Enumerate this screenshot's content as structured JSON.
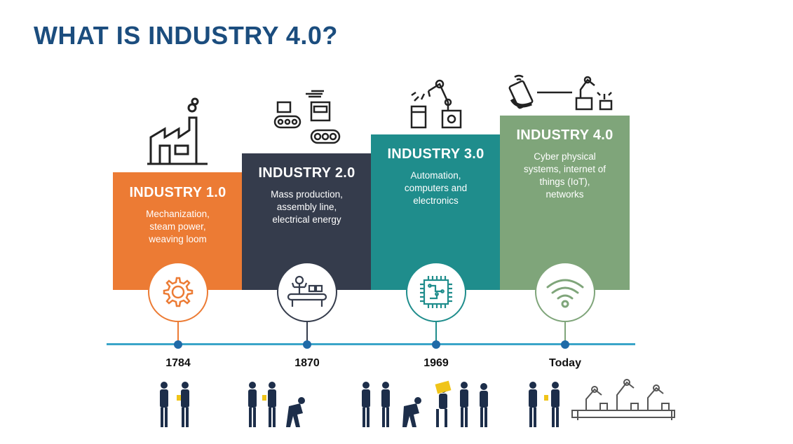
{
  "title": "WHAT IS INDUSTRY 4.0?",
  "stages": [
    {
      "heading": "INDUSTRY 1.0",
      "lines": [
        "Mechanization,",
        "steam power,",
        "weaving loom"
      ],
      "year": "1784",
      "color": "#ec7b34",
      "icon": "gear-icon",
      "top_icon": "factory-icon"
    },
    {
      "heading": "INDUSTRY 2.0",
      "lines": [
        "Mass production,",
        "assembly line,",
        "electrical energy"
      ],
      "year": "1870",
      "color": "#353c4c",
      "icon": "assembly-worker-icon",
      "top_icon": "conveyor-machine-icon"
    },
    {
      "heading": "INDUSTRY 3.0",
      "lines": [
        "Automation,",
        "computers and",
        "electronics"
      ],
      "year": "1969",
      "color": "#1f8d8c",
      "icon": "microchip-icon",
      "top_icon": "robot-arm-icon"
    },
    {
      "heading": "INDUSTRY 4.0",
      "lines": [
        "Cyber physical",
        "systems, internet of",
        "things (IoT),",
        "networks"
      ],
      "year": "Today",
      "color": "#7fa57a",
      "icon": "wifi-icon",
      "top_icon": "phone-robot-link-icon"
    }
  ],
  "timeline_color": "#3aa5c8",
  "dot_color": "#1f6aa8"
}
